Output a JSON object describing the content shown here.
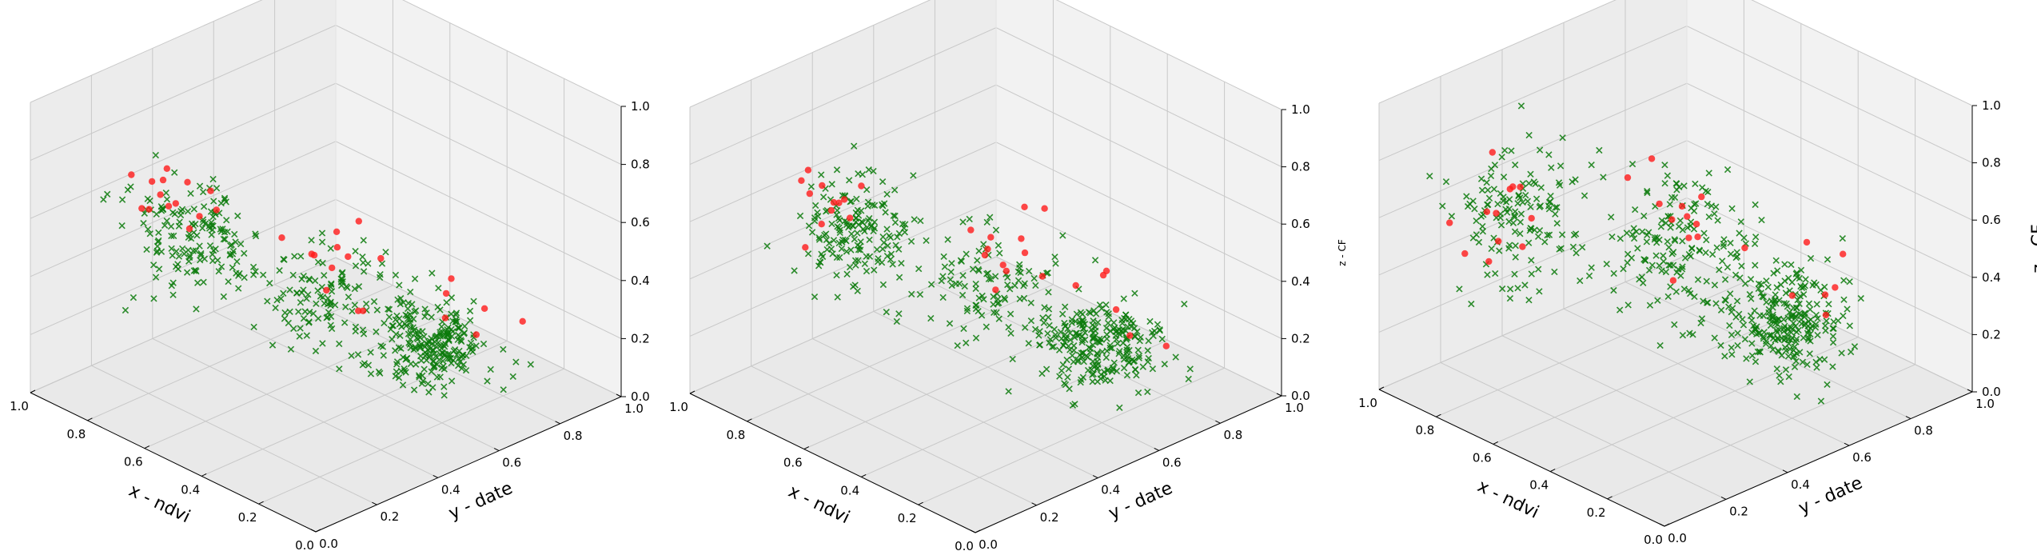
{
  "figure": {
    "colors": {
      "pane_bottom": "#e9e9e9",
      "pane_back": "#f2f2f2",
      "pane_side": "#ececec",
      "grid": "#c8c8c8",
      "cross_marker": "#0a7a0a",
      "dot_marker": "#ff1a1a"
    },
    "marker_types": [
      "x-cross",
      "filled-circle"
    ]
  },
  "chart_data": [
    {
      "type": "scatter",
      "projection": "3d",
      "title": "",
      "xlabel": "x - ndvi",
      "ylabel": "y - date",
      "zlabel": "",
      "xlim": [
        0,
        1
      ],
      "ylim": [
        0,
        1
      ],
      "zlim": [
        0,
        1
      ],
      "xticks": [
        "0.0",
        "0.2",
        "0.4",
        "0.6",
        "0.8",
        "1.0"
      ],
      "yticks": [
        "0.0",
        "0.2",
        "0.4",
        "0.6",
        "0.8",
        "1.0"
      ],
      "zticks": [
        "0.0",
        "0.2",
        "0.4",
        "0.6",
        "0.8",
        "1.0"
      ],
      "grid": true,
      "series": [
        {
          "marker": "x",
          "color": "#0a7a0a",
          "count": 520,
          "clusters": [
            {
              "x": 0.72,
              "y": 0.26,
              "z": 0.55,
              "sx": 0.1,
              "sy": 0.06,
              "sz": 0.1,
              "n": 160
            },
            {
              "x": 0.5,
              "y": 0.48,
              "z": 0.36,
              "sx": 0.08,
              "sy": 0.07,
              "sz": 0.08,
              "n": 110
            },
            {
              "x": 0.33,
              "y": 0.68,
              "z": 0.18,
              "sx": 0.08,
              "sy": 0.07,
              "sz": 0.06,
              "n": 250
            }
          ]
        },
        {
          "marker": "o",
          "color": "#ff1a1a",
          "count": 32,
          "clusters": [
            {
              "x": 0.8,
              "y": 0.28,
              "z": 0.62,
              "sx": 0.08,
              "sy": 0.05,
              "sz": 0.06,
              "n": 14
            },
            {
              "x": 0.52,
              "y": 0.6,
              "z": 0.4,
              "sx": 0.07,
              "sy": 0.06,
              "sz": 0.08,
              "n": 12
            },
            {
              "x": 0.35,
              "y": 0.8,
              "z": 0.28,
              "sx": 0.06,
              "sy": 0.05,
              "sz": 0.1,
              "n": 6
            }
          ]
        }
      ]
    },
    {
      "type": "scatter",
      "projection": "3d",
      "title": "",
      "xlabel": "x - ndvi",
      "ylabel": "y - date",
      "zlabel": "z - CF",
      "xlim": [
        0,
        1
      ],
      "ylim": [
        0,
        1
      ],
      "zlim": [
        0,
        1
      ],
      "xticks": [
        "0.0",
        "0.2",
        "0.4",
        "0.6",
        "0.8",
        "1.0"
      ],
      "yticks": [
        "0.0",
        "0.2",
        "0.4",
        "0.6",
        "0.8",
        "1.0"
      ],
      "zticks": [
        "0.0",
        "0.2",
        "0.4",
        "0.6",
        "0.8",
        "1.0"
      ],
      "grid": true,
      "series": [
        {
          "marker": "x",
          "color": "#0a7a0a",
          "count": 520,
          "clusters": [
            {
              "x": 0.75,
              "y": 0.3,
              "z": 0.55,
              "sx": 0.09,
              "sy": 0.06,
              "sz": 0.1,
              "n": 170
            },
            {
              "x": 0.52,
              "y": 0.52,
              "z": 0.36,
              "sx": 0.08,
              "sy": 0.07,
              "sz": 0.08,
              "n": 100
            },
            {
              "x": 0.32,
              "y": 0.7,
              "z": 0.17,
              "sx": 0.08,
              "sy": 0.07,
              "sz": 0.06,
              "n": 250
            }
          ]
        },
        {
          "marker": "o",
          "color": "#ff1a1a",
          "count": 30,
          "clusters": [
            {
              "x": 0.82,
              "y": 0.3,
              "z": 0.62,
              "sx": 0.07,
              "sy": 0.05,
              "sz": 0.06,
              "n": 12
            },
            {
              "x": 0.55,
              "y": 0.62,
              "z": 0.42,
              "sx": 0.07,
              "sy": 0.06,
              "sz": 0.08,
              "n": 12
            },
            {
              "x": 0.36,
              "y": 0.82,
              "z": 0.28,
              "sx": 0.06,
              "sy": 0.05,
              "sz": 0.1,
              "n": 6
            }
          ]
        }
      ]
    },
    {
      "type": "scatter",
      "projection": "3d",
      "title": "",
      "xlabel": "x - ndvi",
      "ylabel": "y - date",
      "zlabel": "z - CF",
      "xlim": [
        0,
        1
      ],
      "ylim": [
        0,
        1
      ],
      "zlim": [
        0,
        1
      ],
      "xticks": [
        "0.0",
        "0.2",
        "0.4",
        "0.6",
        "0.8",
        "1.0"
      ],
      "yticks": [
        "0.0",
        "0.2",
        "0.4",
        "0.6",
        "0.8",
        "1.0"
      ],
      "zticks": [
        "0.0",
        "0.2",
        "0.4",
        "0.6",
        "0.8",
        "1.0"
      ],
      "grid": true,
      "series": [
        {
          "marker": "x",
          "color": "#0a7a0a",
          "count": 560,
          "clusters": [
            {
              "x": 0.8,
              "y": 0.28,
              "z": 0.55,
              "sx": 0.08,
              "sy": 0.08,
              "sz": 0.12,
              "n": 140
            },
            {
              "x": 0.55,
              "y": 0.55,
              "z": 0.45,
              "sx": 0.12,
              "sy": 0.1,
              "sz": 0.12,
              "n": 170
            },
            {
              "x": 0.35,
              "y": 0.72,
              "z": 0.22,
              "sx": 0.08,
              "sy": 0.08,
              "sz": 0.08,
              "n": 250
            }
          ]
        },
        {
          "marker": "o",
          "color": "#ff1a1a",
          "count": 30,
          "clusters": [
            {
              "x": 0.86,
              "y": 0.28,
              "z": 0.58,
              "sx": 0.07,
              "sy": 0.05,
              "sz": 0.06,
              "n": 12
            },
            {
              "x": 0.58,
              "y": 0.62,
              "z": 0.45,
              "sx": 0.08,
              "sy": 0.07,
              "sz": 0.08,
              "n": 12
            },
            {
              "x": 0.38,
              "y": 0.84,
              "z": 0.28,
              "sx": 0.06,
              "sy": 0.05,
              "sz": 0.1,
              "n": 6
            }
          ]
        }
      ]
    }
  ]
}
